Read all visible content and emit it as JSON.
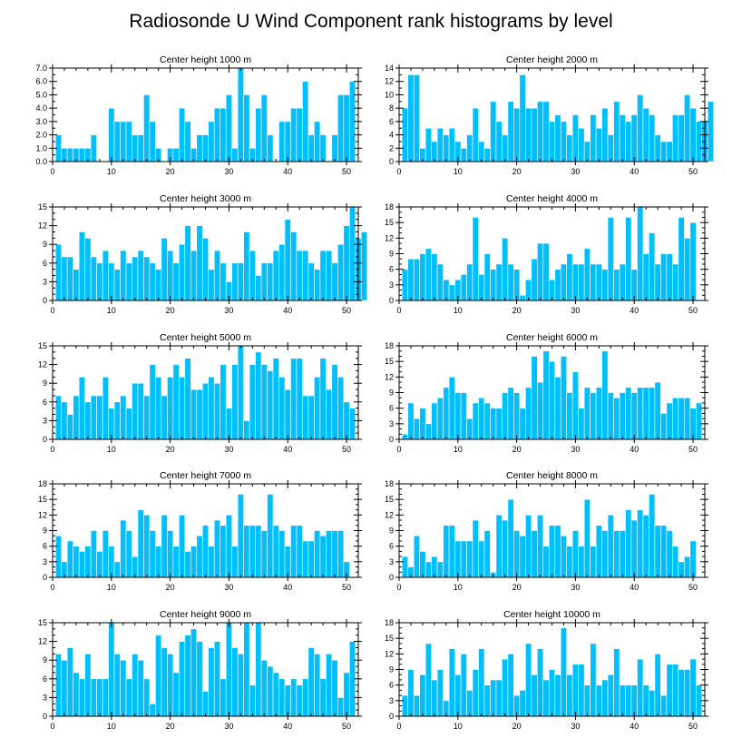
{
  "chart_data": {
    "title": "Radiosonde U Wind Component rank histograms by level",
    "type": "bar",
    "colors": {
      "bar": "#00bfff"
    },
    "panels": [
      {
        "title": "Center height 1000 m",
        "ylim": [
          0,
          7
        ],
        "yticks": [
          0.0,
          1.0,
          2.0,
          3.0,
          4.0,
          5.0,
          6.0,
          7.0
        ],
        "ytick_labels": [
          "0.0",
          "1.0",
          "2.0",
          "3.0",
          "4.0",
          "5.0",
          "6.0",
          "7.0"
        ],
        "xticks": [
          0,
          10,
          20,
          30,
          40,
          50
        ],
        "xtick_labels": [
          "0",
          "10",
          "20",
          "30",
          "40",
          "50"
        ],
        "values": [
          2,
          1,
          1,
          1,
          1,
          1,
          2,
          0,
          0,
          4,
          3,
          3,
          3,
          2,
          2,
          5,
          3,
          1,
          0,
          1,
          1,
          4,
          3,
          1,
          2,
          2,
          3,
          4,
          4,
          5,
          1,
          7,
          5,
          1,
          4,
          5,
          2,
          0,
          3,
          3,
          4,
          4,
          6,
          2,
          3,
          2,
          0,
          2,
          5,
          5,
          6
        ]
      },
      {
        "title": "Center height 2000 m",
        "ylim": [
          0,
          14
        ],
        "yticks": [
          0,
          2,
          4,
          6,
          8,
          10,
          12,
          14
        ],
        "ytick_labels": [
          "0",
          "2",
          "4",
          "6",
          "8",
          "10",
          "12",
          "14"
        ],
        "xticks": [
          0,
          10,
          20,
          30,
          40,
          50
        ],
        "xtick_labels": [
          "0",
          "10",
          "20",
          "30",
          "40",
          "50"
        ],
        "values": [
          8,
          13,
          13,
          2,
          5,
          3,
          5,
          4,
          5,
          3,
          2,
          4,
          8,
          3,
          2,
          9,
          6,
          4,
          9,
          8,
          13,
          8,
          8,
          9,
          9,
          6,
          7,
          6,
          4,
          7,
          5,
          3,
          7,
          5,
          8,
          4,
          9,
          7,
          6,
          7,
          10,
          8,
          7,
          4,
          3,
          3,
          7,
          7,
          10,
          8,
          6,
          6,
          9
        ]
      },
      {
        "title": "Center height 3000 m",
        "ylim": [
          0,
          15
        ],
        "yticks": [
          0,
          3,
          6,
          9,
          12,
          15
        ],
        "ytick_labels": [
          "0",
          "3",
          "6",
          "9",
          "12",
          "15"
        ],
        "xticks": [
          0,
          10,
          20,
          30,
          40,
          50
        ],
        "xtick_labels": [
          "0",
          "10",
          "20",
          "30",
          "40",
          "50"
        ],
        "values": [
          9,
          7,
          7,
          5,
          11,
          10,
          7,
          6,
          8,
          6,
          5,
          8,
          6,
          7,
          8,
          7,
          6,
          5,
          10,
          8,
          6,
          9,
          12,
          8,
          12,
          10,
          5,
          8,
          6,
          3,
          6,
          6,
          11,
          8,
          4,
          6,
          6,
          8,
          9,
          13,
          11,
          8,
          8,
          6,
          5,
          8,
          8,
          6,
          9,
          12,
          15,
          10,
          11
        ]
      },
      {
        "title": "Center height 4000 m",
        "ylim": [
          0,
          18
        ],
        "yticks": [
          0,
          3,
          6,
          9,
          12,
          15,
          18
        ],
        "ytick_labels": [
          "0",
          "3",
          "6",
          "9",
          "12",
          "15",
          "18"
        ],
        "xticks": [
          0,
          10,
          20,
          30,
          40,
          50
        ],
        "xtick_labels": [
          "0",
          "10",
          "20",
          "30",
          "40",
          "50"
        ],
        "values": [
          6,
          8,
          8,
          9,
          10,
          9,
          7,
          4,
          3,
          4,
          5,
          7,
          16,
          5,
          9,
          6,
          7,
          12,
          7,
          6,
          1,
          4,
          8,
          11,
          11,
          4,
          6,
          7,
          9,
          7,
          7,
          10,
          7,
          7,
          6,
          16,
          6,
          7,
          16,
          6,
          18,
          9,
          13,
          7,
          9,
          9,
          7,
          16,
          12,
          15
        ]
      },
      {
        "title": "Center height 5000 m",
        "ylim": [
          0,
          15
        ],
        "yticks": [
          0,
          3,
          6,
          9,
          12,
          15
        ],
        "ytick_labels": [
          "0",
          "3",
          "6",
          "9",
          "12",
          "15"
        ],
        "xticks": [
          0,
          10,
          20,
          30,
          40,
          50
        ],
        "xtick_labels": [
          "0",
          "10",
          "20",
          "30",
          "40",
          "50"
        ],
        "values": [
          7,
          6,
          4,
          7,
          10,
          6,
          7,
          7,
          10,
          5,
          6,
          7,
          5,
          9,
          9,
          7,
          12,
          10,
          7,
          10,
          12,
          10,
          13,
          8,
          8,
          9,
          10,
          9,
          12,
          5,
          12,
          15,
          3,
          12,
          14,
          12,
          11,
          13,
          10,
          8,
          13,
          13,
          7,
          7,
          10,
          13,
          8,
          12,
          10,
          6,
          5
        ]
      },
      {
        "title": "Center height 6000 m",
        "ylim": [
          0,
          18
        ],
        "yticks": [
          0,
          3,
          6,
          9,
          12,
          15,
          18
        ],
        "ytick_labels": [
          "0",
          "3",
          "6",
          "9",
          "12",
          "15",
          "18"
        ],
        "xticks": [
          0,
          10,
          20,
          30,
          40,
          50
        ],
        "xtick_labels": [
          "0",
          "10",
          "20",
          "30",
          "40",
          "50"
        ],
        "values": [
          1,
          7,
          4,
          6,
          3,
          7,
          8,
          10,
          12,
          9,
          9,
          4,
          7,
          8,
          7,
          6,
          6,
          9,
          10,
          9,
          6,
          10,
          16,
          11,
          17,
          15,
          12,
          16,
          9,
          13,
          6,
          10,
          9,
          10,
          17,
          9,
          8,
          9,
          10,
          9,
          10,
          10,
          10,
          11,
          5,
          7,
          8,
          8,
          8,
          6,
          7
        ]
      },
      {
        "title": "Center height 7000 m",
        "ylim": [
          0,
          18
        ],
        "yticks": [
          0,
          3,
          6,
          9,
          12,
          15,
          18
        ],
        "ytick_labels": [
          "0",
          "3",
          "6",
          "9",
          "12",
          "15",
          "18"
        ],
        "xticks": [
          0,
          10,
          20,
          30,
          40,
          50
        ],
        "xtick_labels": [
          "0",
          "10",
          "20",
          "30",
          "40",
          "50"
        ],
        "values": [
          8,
          3,
          7,
          6,
          5,
          6,
          9,
          5,
          9,
          6,
          3,
          11,
          9,
          4,
          13,
          12,
          9,
          6,
          12,
          9,
          6,
          12,
          5,
          6,
          8,
          10,
          6,
          11,
          10,
          12,
          6,
          16,
          10,
          10,
          10,
          9,
          16,
          10,
          9,
          6,
          10,
          10,
          7,
          7,
          9,
          8,
          9,
          9,
          9,
          3
        ]
      },
      {
        "title": "Center height 8000 m",
        "ylim": [
          0,
          18
        ],
        "yticks": [
          0,
          3,
          6,
          9,
          12,
          15,
          18
        ],
        "ytick_labels": [
          "0",
          "3",
          "6",
          "9",
          "12",
          "15",
          "18"
        ],
        "xticks": [
          0,
          10,
          20,
          30,
          40,
          50
        ],
        "xtick_labels": [
          "0",
          "10",
          "20",
          "30",
          "40",
          "50"
        ],
        "values": [
          4,
          2,
          8,
          5,
          3,
          4,
          3,
          10,
          10,
          7,
          7,
          7,
          11,
          7,
          9,
          1,
          12,
          11,
          15,
          9,
          8,
          12,
          9,
          12,
          6,
          10,
          10,
          8,
          6,
          9,
          6,
          15,
          6,
          10,
          9,
          12,
          9,
          9,
          13,
          11,
          13,
          12,
          16,
          10,
          10,
          9,
          6,
          3,
          4,
          7
        ]
      },
      {
        "title": "Center height 9000 m",
        "ylim": [
          0,
          15
        ],
        "yticks": [
          0,
          3,
          6,
          9,
          12,
          15
        ],
        "ytick_labels": [
          "0",
          "3",
          "6",
          "9",
          "12",
          "15"
        ],
        "xticks": [
          0,
          10,
          20,
          30,
          40,
          50
        ],
        "xtick_labels": [
          "0",
          "10",
          "20",
          "30",
          "40",
          "50"
        ],
        "values": [
          10,
          9,
          11,
          7,
          6,
          10,
          6,
          6,
          6,
          15,
          10,
          9,
          6,
          10,
          9,
          6,
          2,
          13,
          11,
          10,
          7,
          12,
          13,
          14,
          12,
          4,
          11,
          12,
          6,
          15,
          11,
          10,
          15,
          5,
          15,
          9,
          8,
          7,
          6,
          5,
          6,
          5,
          6,
          11,
          10,
          6,
          10,
          9,
          3,
          7,
          12
        ]
      },
      {
        "title": "Center height 10000 m",
        "ylim": [
          0,
          18
        ],
        "yticks": [
          0,
          3,
          6,
          9,
          12,
          15,
          18
        ],
        "ytick_labels": [
          "0",
          "3",
          "6",
          "9",
          "12",
          "15",
          "18"
        ],
        "xticks": [
          0,
          10,
          20,
          30,
          40,
          50
        ],
        "xtick_labels": [
          "0",
          "10",
          "20",
          "30",
          "40",
          "50"
        ],
        "values": [
          4,
          9,
          4,
          8,
          14,
          7,
          9,
          3,
          13,
          8,
          12,
          5,
          9,
          13,
          6,
          7,
          7,
          11,
          12,
          4,
          5,
          14,
          8,
          13,
          7,
          9,
          8,
          17,
          8,
          10,
          10,
          6,
          14,
          6,
          7,
          8,
          13,
          6,
          6,
          6,
          11,
          6,
          5,
          12,
          4,
          10,
          10,
          9,
          9,
          11,
          6
        ]
      }
    ]
  }
}
